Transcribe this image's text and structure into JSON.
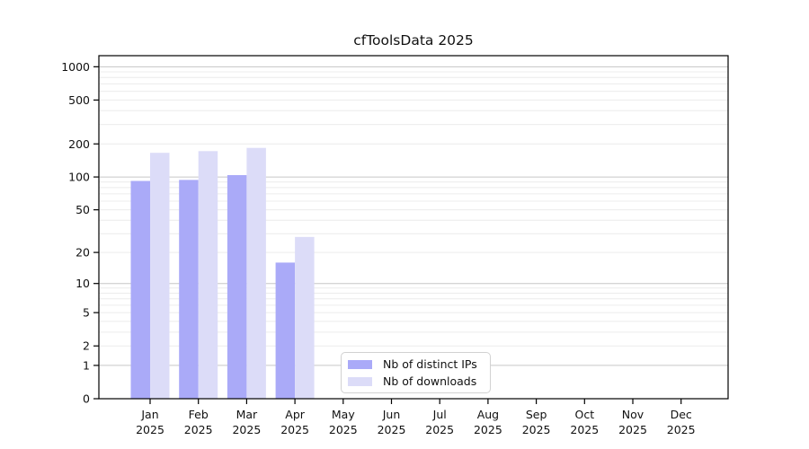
{
  "chart_data": {
    "type": "bar",
    "title": "cfToolsData 2025",
    "months": [
      "Jan",
      "Feb",
      "Mar",
      "Apr",
      "May",
      "Jun",
      "Jul",
      "Aug",
      "Sep",
      "Oct",
      "Nov",
      "Dec"
    ],
    "year": "2025",
    "series": [
      {
        "name": "Nb of distinct IPs",
        "color": "#aaaaf8",
        "values": [
          92,
          94,
          104,
          16,
          0,
          0,
          0,
          0,
          0,
          0,
          0,
          0
        ]
      },
      {
        "name": "Nb of downloads",
        "color": "#dcdcf8",
        "values": [
          166,
          172,
          184,
          28,
          0,
          0,
          0,
          0,
          0,
          0,
          0,
          0
        ]
      }
    ],
    "y_axis": {
      "scale": "symlog",
      "ticks": [
        0,
        1,
        2,
        5,
        10,
        20,
        50,
        100,
        200,
        500,
        1000
      ],
      "major_gridlines": [
        1,
        10,
        100,
        1000
      ],
      "minor_gridlines": [
        2,
        3,
        4,
        5,
        6,
        7,
        8,
        9,
        20,
        30,
        40,
        50,
        60,
        70,
        80,
        90,
        200,
        300,
        400,
        500,
        600,
        700,
        800,
        900
      ],
      "ylim": [
        0,
        1260
      ],
      "ymax": 1260
    },
    "x_axis": {
      "label_format": "month over year"
    },
    "legend": {
      "position": "bottom-center"
    },
    "colors": {
      "grid_major": "#c6c6c6",
      "grid_minor": "#ececec",
      "axis": "#000000",
      "background": "#ffffff"
    }
  }
}
